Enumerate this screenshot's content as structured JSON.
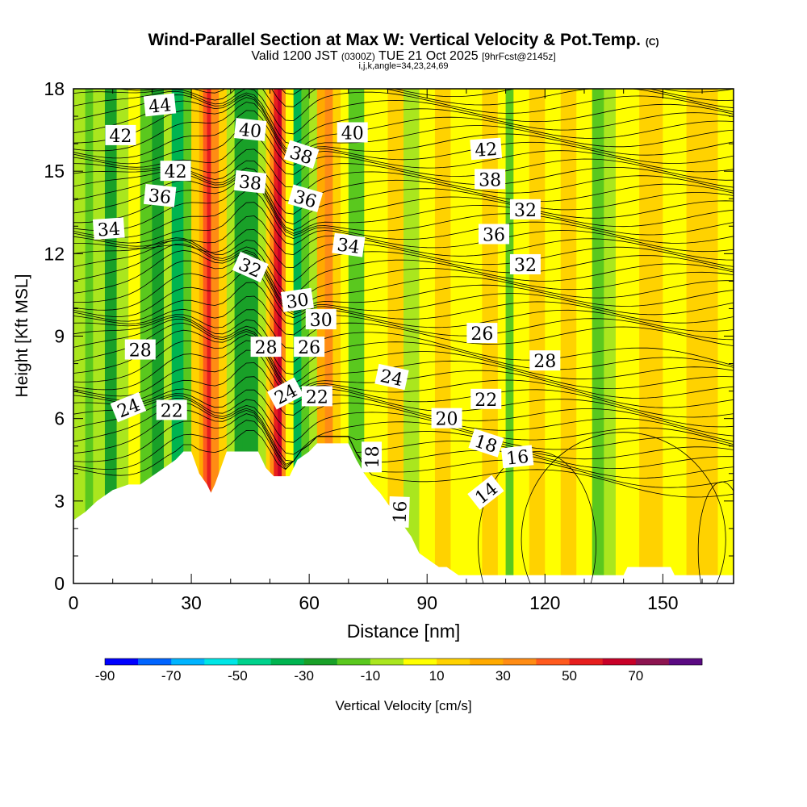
{
  "chart_data": {
    "type": "contour",
    "title": "Wind-Parallel Section at Max W: Vertical Velocity & Pot.Temp.",
    "title_mark": "(C)",
    "subtitle_prefix": "Valid 1200 JST",
    "subtitle_utc": "(0300Z)",
    "subtitle_date": "TUE 21 Oct 2025",
    "subtitle_fcst": "[9hrFcst@2145z]",
    "subtitle_params": "i,j,k,angle=34,23,24,69",
    "xlabel": "Distance [nm]",
    "ylabel": "Height [Kft MSL]",
    "xlim": [
      0,
      168
    ],
    "ylim": [
      0,
      18
    ],
    "xticks": [
      0,
      30,
      60,
      90,
      120,
      150
    ],
    "yticks": [
      0,
      3,
      6,
      9,
      12,
      15,
      18
    ],
    "colorbar": {
      "label": "Vertical Velocity [cm/s]",
      "levels": [
        -90,
        -80,
        -70,
        -60,
        -50,
        -40,
        -30,
        -20,
        -10,
        0,
        10,
        20,
        30,
        40,
        50,
        60,
        70,
        80
      ],
      "tick_labels": [
        -90,
        -70,
        -50,
        -30,
        -10,
        10,
        30,
        50,
        70
      ],
      "colors": [
        "#0000ff",
        "#0064ff",
        "#00b4ff",
        "#00e6e6",
        "#00d28c",
        "#00b450",
        "#19a028",
        "#5ac81e",
        "#aae61e",
        "#ffff00",
        "#ffd200",
        "#ffaa00",
        "#ff8c14",
        "#ff5a1e",
        "#e61e1e",
        "#c80028",
        "#8c1450",
        "#5a0a82"
      ]
    },
    "terrain": [
      [
        0,
        2.3
      ],
      [
        3,
        2.6
      ],
      [
        6,
        3.0
      ],
      [
        10,
        3.4
      ],
      [
        14,
        3.6
      ],
      [
        17,
        3.6
      ],
      [
        20,
        3.9
      ],
      [
        23,
        4.2
      ],
      [
        26,
        4.5
      ],
      [
        28,
        4.8
      ],
      [
        30,
        4.8
      ],
      [
        32,
        4.0
      ],
      [
        34,
        3.6
      ],
      [
        35,
        3.3
      ],
      [
        36,
        3.6
      ],
      [
        37,
        4.0
      ],
      [
        39,
        4.8
      ],
      [
        43,
        4.8
      ],
      [
        47,
        4.8
      ],
      [
        49,
        4.2
      ],
      [
        51,
        3.9
      ],
      [
        55,
        3.9
      ],
      [
        57,
        4.5
      ],
      [
        60,
        4.8
      ],
      [
        62,
        5.1
      ],
      [
        66,
        5.1
      ],
      [
        70,
        5.1
      ],
      [
        72,
        4.5
      ],
      [
        74,
        4.0
      ],
      [
        76,
        3.6
      ],
      [
        78,
        3.3
      ],
      [
        81,
        2.7
      ],
      [
        84,
        2.1
      ],
      [
        86,
        1.7
      ],
      [
        88,
        1.1
      ],
      [
        90,
        0.9
      ],
      [
        93,
        0.6
      ],
      [
        95,
        0.6
      ],
      [
        98,
        0.3
      ],
      [
        100,
        0.3
      ],
      [
        140,
        0.3
      ],
      [
        141,
        0.6
      ],
      [
        152,
        0.6
      ],
      [
        153,
        0.3
      ],
      [
        168,
        0.3
      ]
    ],
    "velocity_columns": [
      [
        0,
        -10
      ],
      [
        3,
        -18
      ],
      [
        5,
        -8
      ],
      [
        8,
        -22
      ],
      [
        11,
        -6
      ],
      [
        14,
        2
      ],
      [
        17,
        -12
      ],
      [
        20,
        -26
      ],
      [
        23,
        -5
      ],
      [
        25,
        -34
      ],
      [
        28,
        -12
      ],
      [
        30,
        15
      ],
      [
        32,
        28
      ],
      [
        33,
        48
      ],
      [
        34,
        52
      ],
      [
        35,
        38
      ],
      [
        37,
        14
      ],
      [
        39,
        -8
      ],
      [
        41,
        -24
      ],
      [
        43,
        -30
      ],
      [
        45,
        -22
      ],
      [
        47,
        -8
      ],
      [
        49,
        12
      ],
      [
        50,
        32
      ],
      [
        51,
        55
      ],
      [
        52,
        62
      ],
      [
        53,
        38
      ],
      [
        54,
        4
      ],
      [
        56,
        -34
      ],
      [
        58,
        -18
      ],
      [
        60,
        -4
      ],
      [
        62,
        24
      ],
      [
        64,
        38
      ],
      [
        66,
        18
      ],
      [
        68,
        4
      ],
      [
        70,
        -12
      ],
      [
        72,
        -16
      ],
      [
        74,
        2
      ],
      [
        77,
        8
      ],
      [
        80,
        14
      ],
      [
        84,
        -4
      ],
      [
        88,
        6
      ],
      [
        92,
        10
      ],
      [
        96,
        4
      ],
      [
        100,
        8
      ],
      [
        104,
        14
      ],
      [
        108,
        6
      ],
      [
        110,
        -18
      ],
      [
        112,
        4
      ],
      [
        116,
        14
      ],
      [
        120,
        8
      ],
      [
        124,
        18
      ],
      [
        128,
        4
      ],
      [
        132,
        -14
      ],
      [
        135,
        -6
      ],
      [
        138,
        8
      ],
      [
        144,
        12
      ],
      [
        150,
        6
      ],
      [
        156,
        18
      ],
      [
        160,
        14
      ],
      [
        164,
        4
      ],
      [
        168,
        8
      ]
    ],
    "theta_levels": [
      14,
      16,
      18,
      20,
      22,
      24,
      26,
      28,
      30,
      32,
      34,
      36,
      38,
      40,
      42,
      44
    ],
    "theta_labels": [
      "42",
      "44",
      "42",
      "40",
      "38",
      "38",
      "40",
      "42",
      "36",
      "36",
      "38",
      "32",
      "34",
      "36",
      "34",
      "32",
      "32",
      "30",
      "30",
      "28",
      "28",
      "26",
      "28",
      "26",
      "24",
      "24",
      "24",
      "22",
      "22",
      "22",
      "20",
      "18",
      "18",
      "16",
      "16",
      "14"
    ]
  }
}
